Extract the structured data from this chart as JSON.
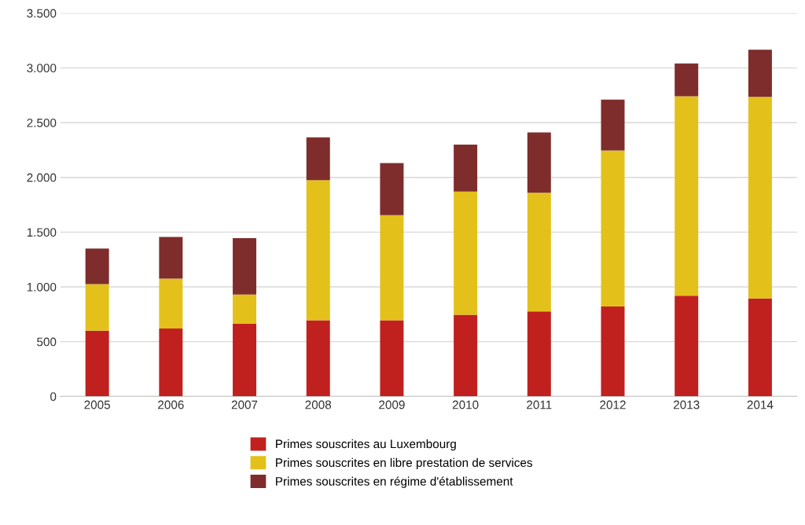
{
  "chart_data": {
    "type": "bar",
    "stacked": true,
    "categories": [
      "2005",
      "2006",
      "2007",
      "2008",
      "2009",
      "2010",
      "2011",
      "2012",
      "2013",
      "2014"
    ],
    "series": [
      {
        "name": "Primes souscrites au Luxembourg",
        "color": "#c0211e",
        "values": [
          600,
          620,
          665,
          695,
          695,
          745,
          775,
          820,
          920,
          895
        ]
      },
      {
        "name": "Primes souscrites en libre prestation de services",
        "color": "#e3c11a",
        "values": [
          425,
          455,
          265,
          1280,
          960,
          1125,
          1085,
          1425,
          1820,
          1840
        ]
      },
      {
        "name": "Primes souscrites en régime d'établissement",
        "color": "#7e2d2c",
        "values": [
          325,
          380,
          515,
          390,
          475,
          430,
          550,
          465,
          300,
          430
        ]
      }
    ],
    "ylim": [
      0,
      3500
    ],
    "yticks": [
      {
        "value": 0,
        "label": "0"
      },
      {
        "value": 500,
        "label": "500"
      },
      {
        "value": 1000,
        "label": "1.000"
      },
      {
        "value": 1500,
        "label": "1.500"
      },
      {
        "value": 2000,
        "label": "2.000"
      },
      {
        "value": 2500,
        "label": "2.500"
      },
      {
        "value": 3000,
        "label": "3.000"
      },
      {
        "value": 3500,
        "label": "3.500"
      }
    ],
    "grid": "y",
    "legend": "bottom"
  }
}
